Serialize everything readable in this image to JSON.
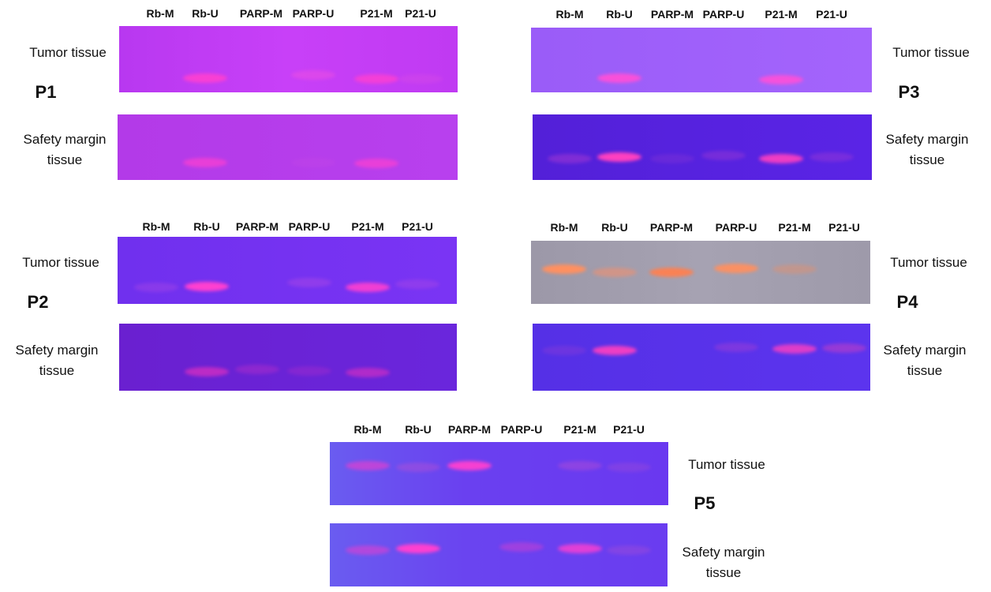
{
  "panels": [
    {
      "label": "P1",
      "lanes": [
        "Rb-M",
        "Rb-U",
        "PARP-M",
        "PARP-U",
        "P21-M",
        "P21-U"
      ],
      "rows": [
        "Tumor tissue",
        "Safety margin tissue"
      ]
    },
    {
      "label": "P3",
      "lanes": [
        "Rb-M",
        "Rb-U",
        "PARP-M",
        "PARP-U",
        "P21-M",
        "P21-U"
      ],
      "rows": [
        "Tumor tissue",
        "Safety margin tissue"
      ]
    },
    {
      "label": "P2",
      "lanes": [
        "Rb-M",
        "Rb-U",
        "PARP-M",
        "PARP-U",
        "P21-M",
        "P21-U"
      ],
      "rows": [
        "Tumor tissue",
        "Safety margin tissue"
      ]
    },
    {
      "label": "P4",
      "lanes": [
        "Rb-M",
        "Rb-U",
        "PARP-M",
        "PARP-U",
        "P21-M",
        "P21-U"
      ],
      "rows": [
        "Tumor tissue",
        "Safety margin tissue"
      ]
    },
    {
      "label": "P5",
      "lanes": [
        "Rb-M",
        "Rb-U",
        "PARP-M",
        "PARP-U",
        "P21-M",
        "P21-U"
      ],
      "rows": [
        "Tumor tissue",
        "Safety margin tissue"
      ]
    }
  ]
}
